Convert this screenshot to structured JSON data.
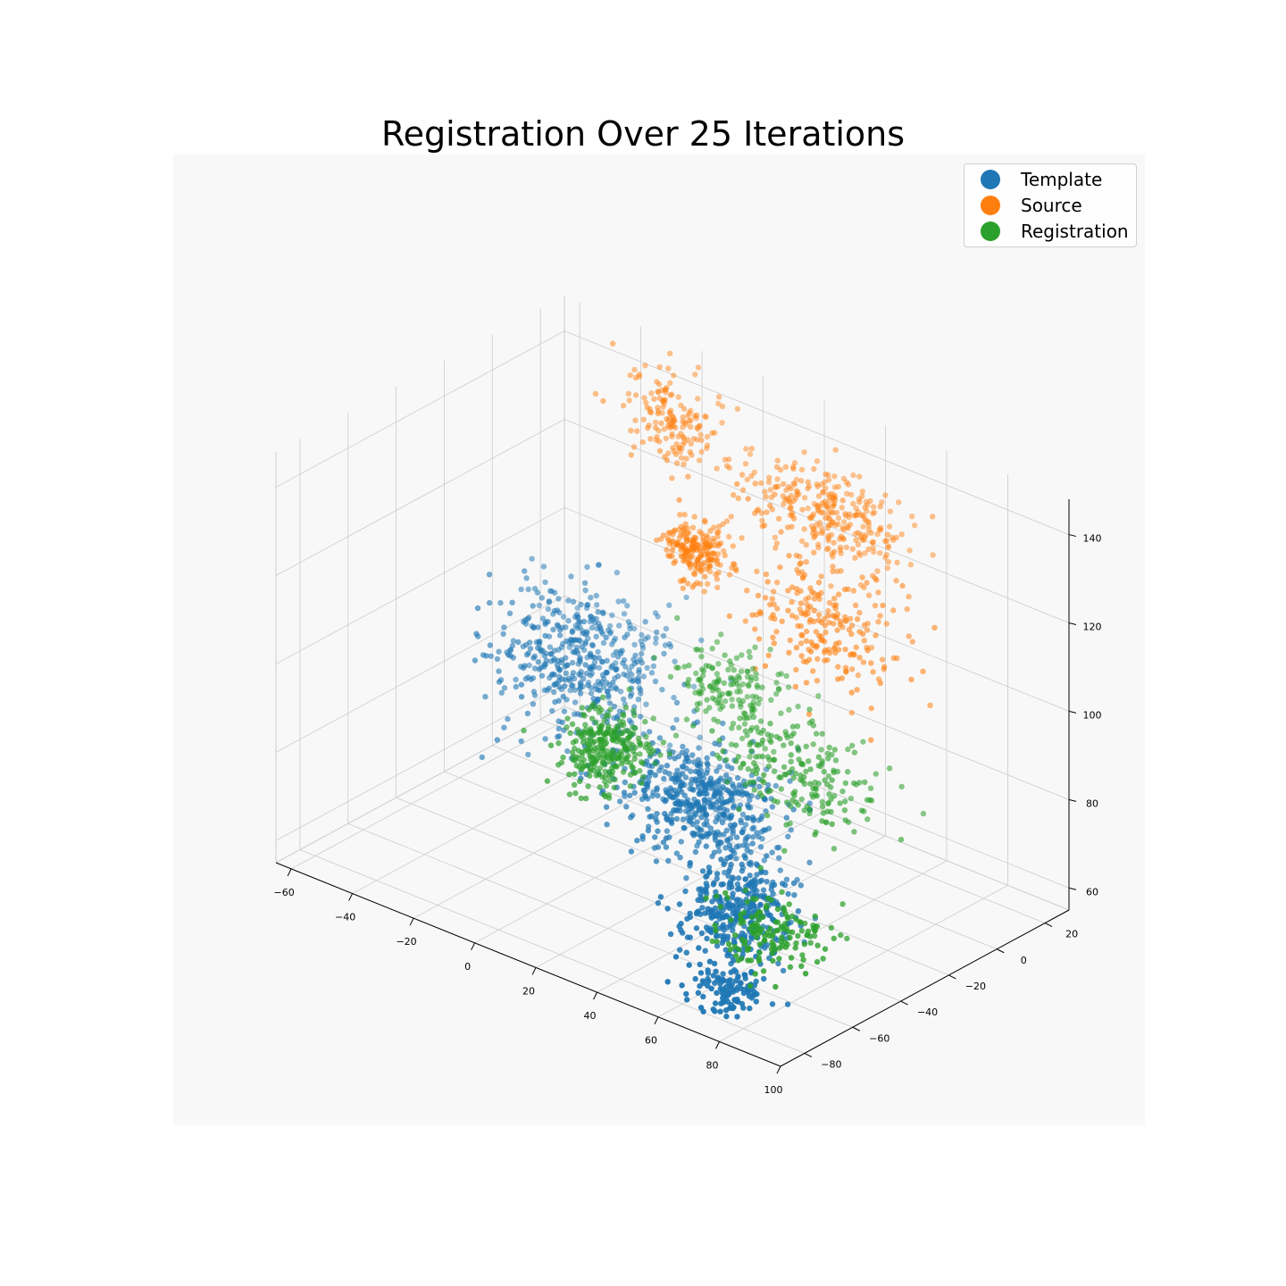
{
  "chart_data": {
    "type": "scatter",
    "title": "Registration Over 25 Iterations",
    "xlabel": "",
    "ylabel": "",
    "zlabel": "",
    "xlim": [
      -65,
      100
    ],
    "ylim": [
      -90,
      30
    ],
    "zlim": [
      55,
      148
    ],
    "xticks": [
      "−60",
      "−40",
      "−20",
      "0",
      "20",
      "40",
      "60",
      "80",
      "100"
    ],
    "yticks": [
      "−80",
      "−60",
      "−40",
      "−20",
      "0",
      "20"
    ],
    "zticks": [
      "60",
      "80",
      "100",
      "120",
      "140"
    ],
    "grid": true,
    "legend_position": "top-right",
    "series": [
      {
        "name": "Template",
        "color": "#1f77b4",
        "clusters": [
          {
            "center": [
              -40,
              5,
              80
            ],
            "spread": [
              22,
              15,
              12
            ],
            "count": 480
          },
          {
            "center": [
              20,
              -20,
              72
            ],
            "spread": [
              22,
              12,
              9
            ],
            "count": 520
          },
          {
            "center": [
              55,
              -50,
              66
            ],
            "spread": [
              12,
              12,
              8
            ],
            "count": 340
          },
          {
            "center": [
              70,
              -72,
              58
            ],
            "spread": [
              9,
              8,
              5
            ],
            "count": 120
          }
        ]
      },
      {
        "name": "Source",
        "color": "#ff7f0e",
        "clusters": [
          {
            "center": [
              -25,
              25,
              132
            ],
            "spread": [
              14,
              8,
              8
            ],
            "count": 160
          },
          {
            "center": [
              -10,
              15,
              110
            ],
            "spread": [
              8,
              6,
              5
            ],
            "count": 200
          },
          {
            "center": [
              25,
              25,
              125
            ],
            "spread": [
              22,
              10,
              8
            ],
            "count": 300
          },
          {
            "center": [
              40,
              5,
              110
            ],
            "spread": [
              22,
              10,
              10
            ],
            "count": 220
          }
        ]
      },
      {
        "name": "Registration",
        "color": "#2ca02c",
        "clusters": [
          {
            "center": [
              -15,
              -15,
              72
            ],
            "spread": [
              10,
              9,
              6
            ],
            "count": 280
          },
          {
            "center": [
              5,
              10,
              84
            ],
            "spread": [
              14,
              8,
              8
            ],
            "count": 160
          },
          {
            "center": [
              40,
              -5,
              80
            ],
            "spread": [
              20,
              10,
              8
            ],
            "count": 200
          },
          {
            "center": [
              65,
              -50,
              64
            ],
            "spread": [
              12,
              12,
              6
            ],
            "count": 150
          }
        ]
      }
    ]
  }
}
